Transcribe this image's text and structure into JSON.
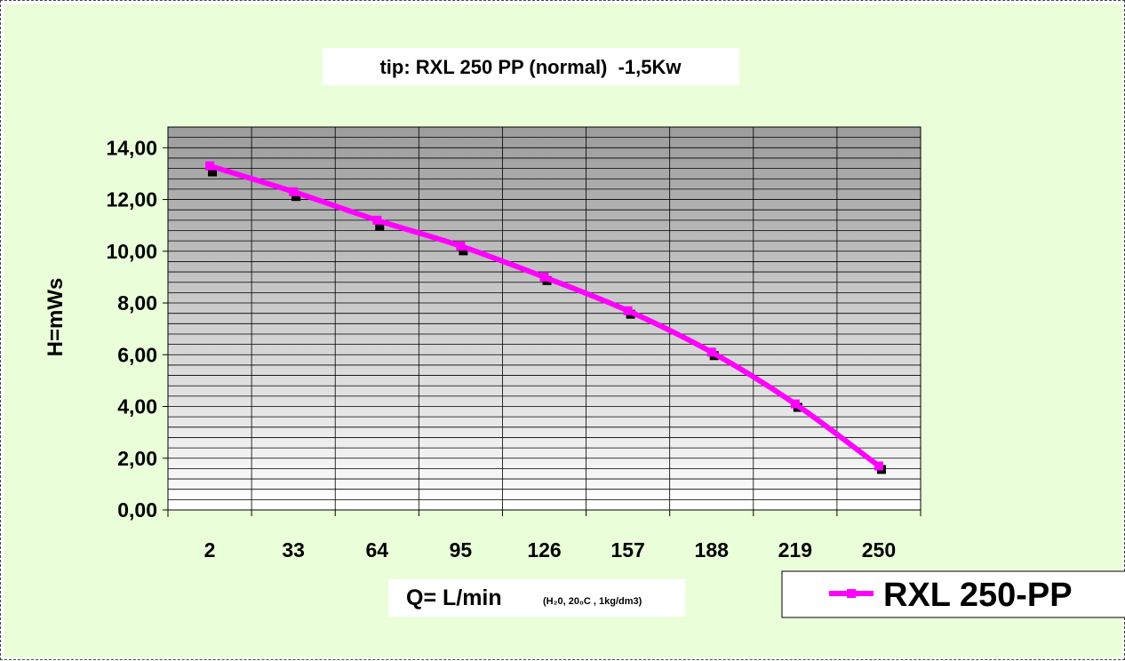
{
  "colors": {
    "chart_area_bg": "#eaffd9",
    "plot_gradient_top": "#9c9c9c",
    "plot_gradient_bottom": "#ffffff",
    "series_line": "#ff00ff",
    "series_marker": "#000000",
    "gridline": "#000000",
    "legend_bg": "#ffffff"
  },
  "chart_data": {
    "type": "line",
    "title": "tip: RXL 250 PP (normal)  -1,5Kw",
    "xlabel": "Q= L/min",
    "xlabel_note": "(H₂0, 20₀C , 1kg/dm3)",
    "ylabel": "H=mWs",
    "categories": [
      "2",
      "33",
      "64",
      "95",
      "126",
      "157",
      "188",
      "219",
      "250"
    ],
    "series": [
      {
        "name": "RXL 250-PP",
        "values": [
          13.3,
          12.3,
          11.2,
          10.2,
          9.0,
          7.7,
          6.1,
          4.1,
          1.7
        ],
        "marker_values": [
          13.1,
          12.15,
          11.0,
          10.05,
          8.9,
          7.6,
          6.0,
          4.0,
          1.6
        ]
      }
    ],
    "ylim": [
      0,
      14.8
    ],
    "yticks": [
      0,
      2,
      4,
      6,
      8,
      10,
      12,
      14
    ],
    "ytick_labels": [
      "0,00",
      "2,00",
      "4,00",
      "6,00",
      "8,00",
      "10,00",
      "12,00",
      "14,00"
    ],
    "minor_grid_step": 0.4,
    "grid": true,
    "legend_position": "bottom-right"
  }
}
